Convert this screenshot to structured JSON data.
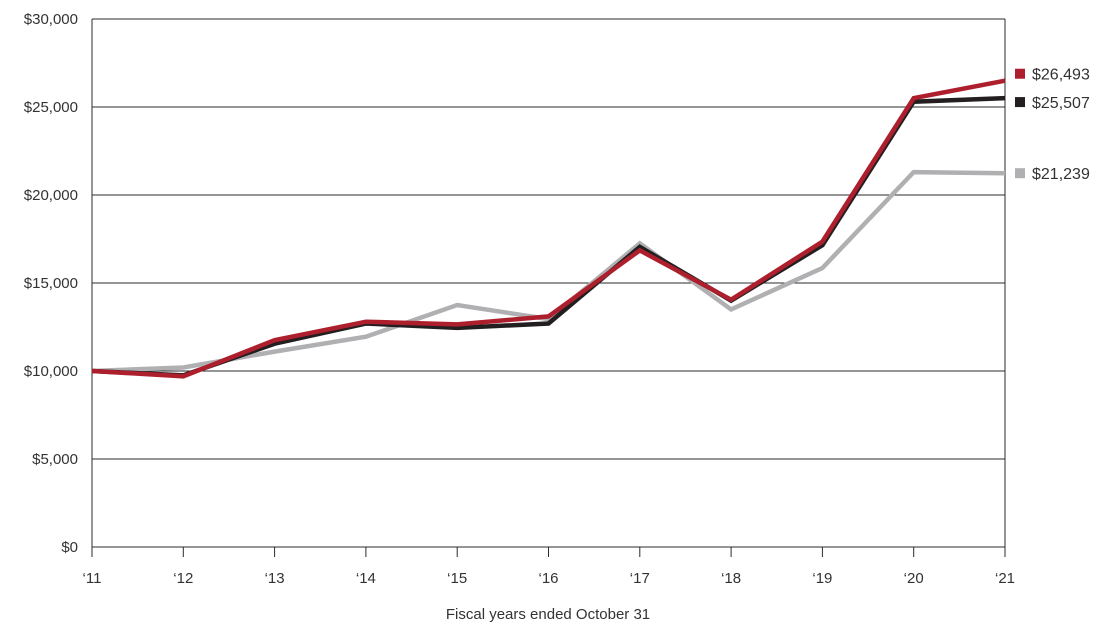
{
  "chart_data": {
    "type": "line",
    "title": "",
    "xlabel": "Fiscal years ended October 31",
    "ylabel": "",
    "categories": [
      "‘11",
      "‘12",
      "‘13",
      "‘14",
      "‘15",
      "‘16",
      "‘17",
      "‘18",
      "‘19",
      "‘20",
      "‘21"
    ],
    "ylim": [
      0,
      30000
    ],
    "yticks": [
      0,
      5000,
      10000,
      15000,
      20000,
      25000,
      30000
    ],
    "ytick_labels": [
      "$0",
      "$5,000",
      "$10,000",
      "$15,000",
      "$20,000",
      "$25,000",
      "$30,000"
    ],
    "grid": true,
    "legend": "end-of-line labels",
    "series": [
      {
        "color": "#b0b0b3",
        "values": [
          10000,
          10200,
          11100,
          11950,
          13750,
          12950,
          17250,
          13500,
          15850,
          21300,
          21239
        ],
        "end_label": "$21,239"
      },
      {
        "color": "#231f20",
        "values": [
          10000,
          9750,
          11550,
          12700,
          12450,
          12700,
          17050,
          14000,
          17150,
          25300,
          25507
        ],
        "end_label": "$25,507"
      },
      {
        "color": "#ae1f2e",
        "values": [
          10000,
          9700,
          11750,
          12800,
          12650,
          13100,
          16850,
          14050,
          17350,
          25500,
          26493
        ],
        "end_label": "$26,493"
      }
    ]
  }
}
